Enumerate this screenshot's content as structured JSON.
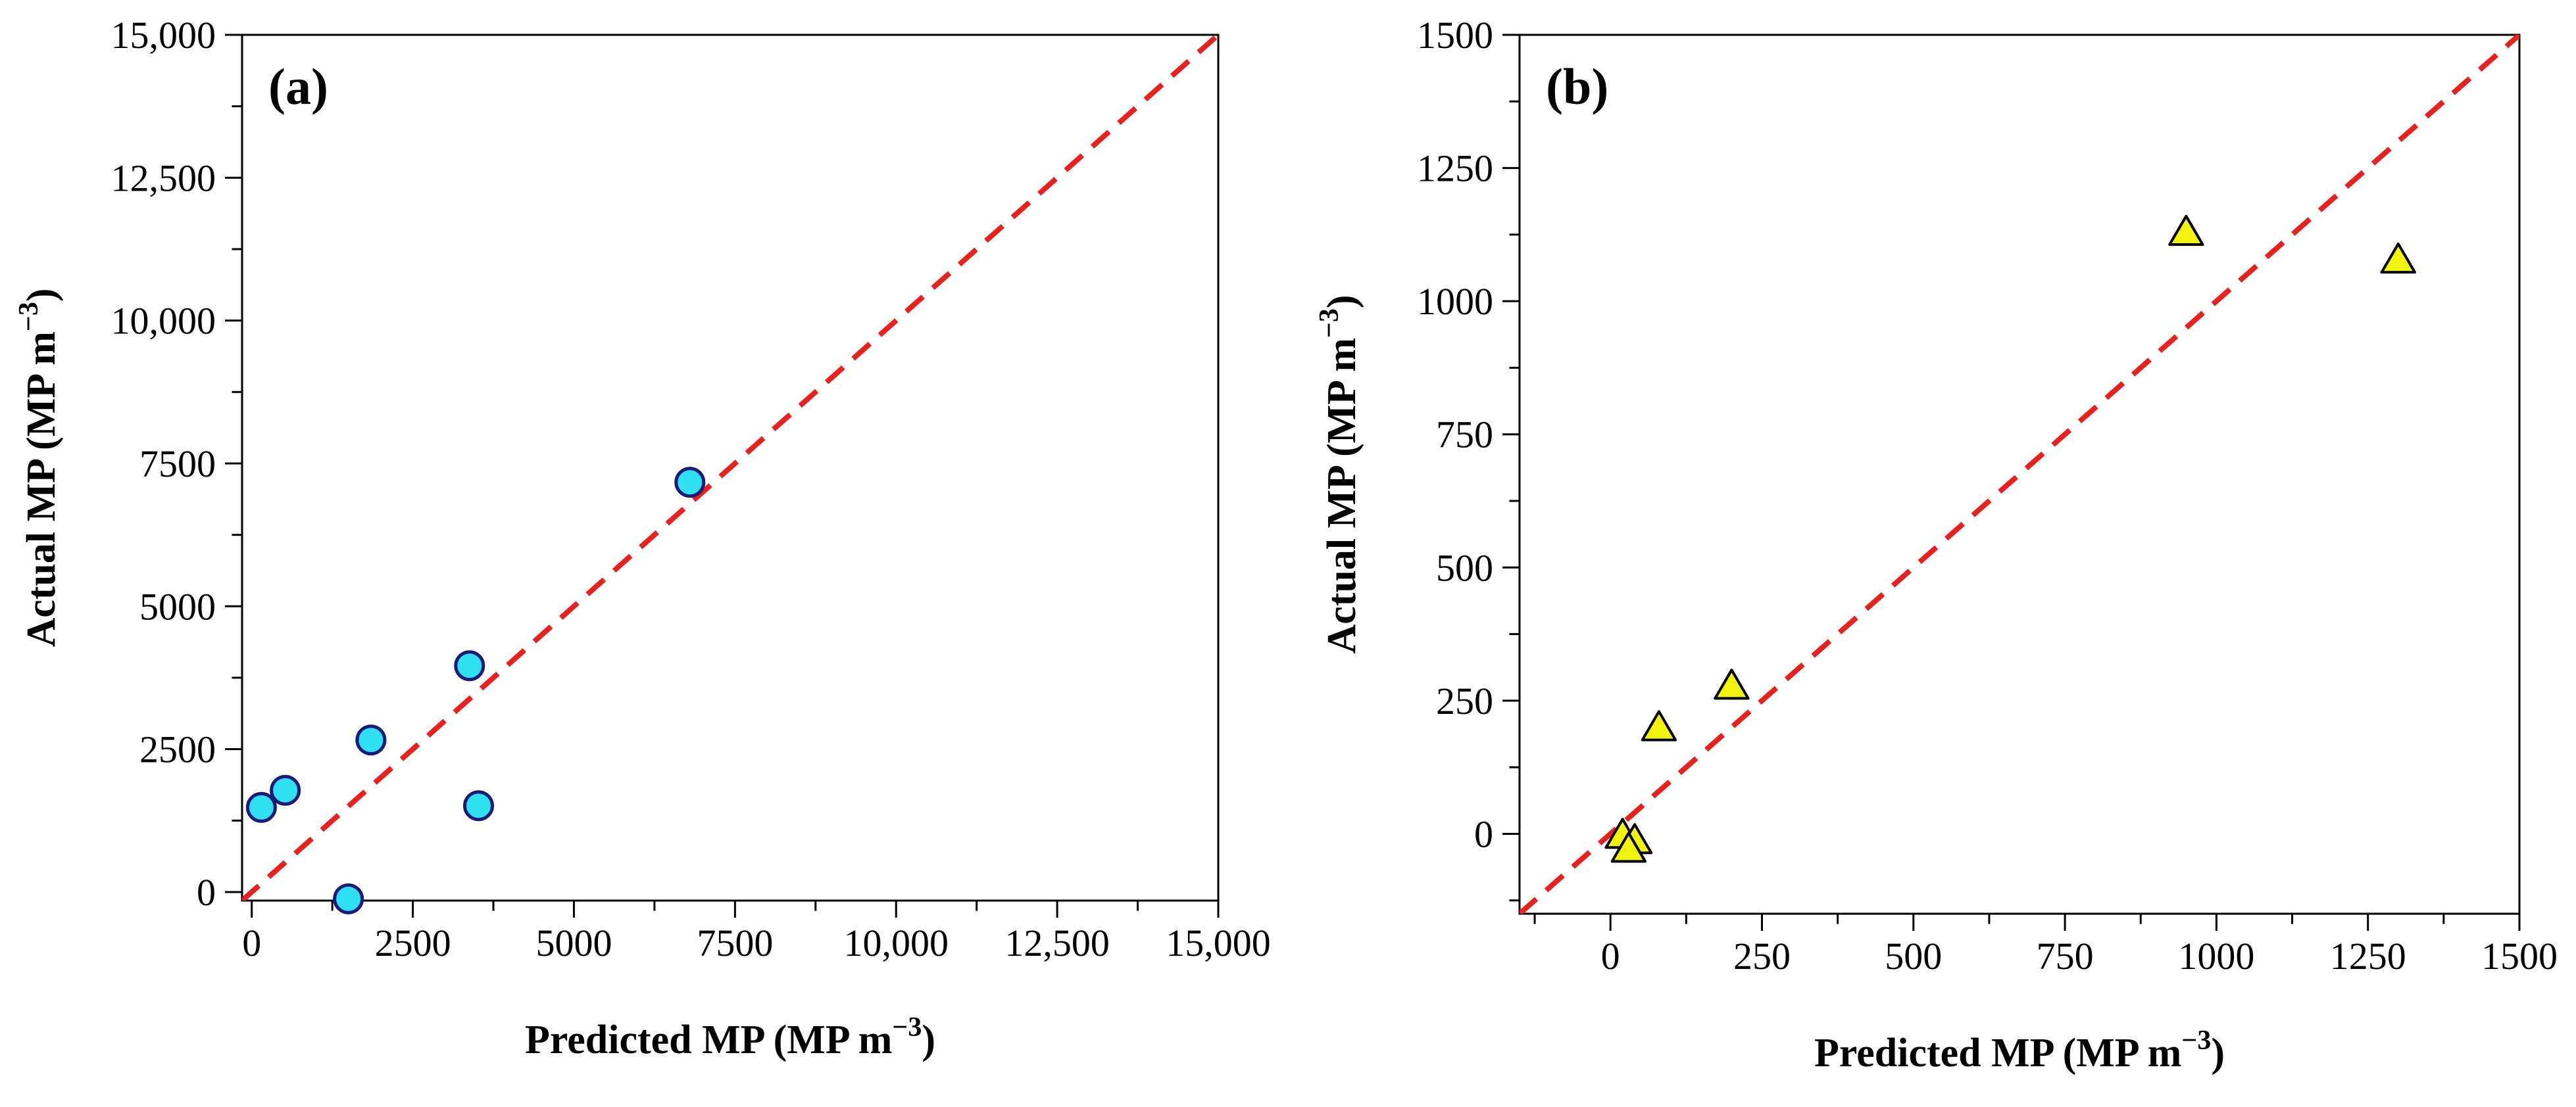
{
  "chart_data": [
    {
      "type": "scatter",
      "panel_label": "(a)",
      "xlabel": "Predicted MP (MP m",
      "ylabel": "Actual MP (MP m",
      "unit_exponent": "−3",
      "unit_close": ")",
      "xlim": [
        -150,
        15000
      ],
      "ylim": [
        -150,
        15000
      ],
      "xticks": [
        0,
        2500,
        5000,
        7500,
        10000,
        12500,
        15000
      ],
      "xtick_labels": [
        "0",
        "2500",
        "5000",
        "7500",
        "10,000",
        "12,500",
        "15,000"
      ],
      "yticks": [
        0,
        2500,
        5000,
        7500,
        10000,
        12500,
        15000
      ],
      "ytick_labels": [
        "0",
        "2500",
        "5000",
        "7500",
        "10,000",
        "12,500",
        "15,000"
      ],
      "reference_line": {
        "style": "dashed",
        "color": "#e8211f",
        "from": [
          -150,
          -150
        ],
        "to": [
          15000,
          15000
        ]
      },
      "marker": {
        "shape": "circle",
        "fill": "#2ee0f0",
        "stroke": "#1a1a7a"
      },
      "grid": false,
      "points": [
        {
          "x": 150,
          "y": 1480
        },
        {
          "x": 520,
          "y": 1780
        },
        {
          "x": 1500,
          "y": -120
        },
        {
          "x": 1850,
          "y": 2660
        },
        {
          "x": 3380,
          "y": 3960
        },
        {
          "x": 3520,
          "y": 1510
        },
        {
          "x": 6800,
          "y": 7170
        }
      ]
    },
    {
      "type": "scatter",
      "panel_label": "(b)",
      "xlabel": "Predicted MP (MP m",
      "ylabel": "Actual MP (MP m",
      "unit_exponent": "−3",
      "unit_close": ")",
      "xlim": [
        -150,
        1500
      ],
      "ylim": [
        -150,
        1500
      ],
      "xticks": [
        0,
        250,
        500,
        750,
        1000,
        1250,
        1500
      ],
      "xtick_labels": [
        "0",
        "250",
        "500",
        "750",
        "1000",
        "1250",
        "1500"
      ],
      "yticks": [
        0,
        250,
        500,
        750,
        1000,
        1250,
        1500
      ],
      "ytick_labels": [
        "0",
        "250",
        "500",
        "750",
        "1000",
        "1250",
        "1500"
      ],
      "reference_line": {
        "style": "dashed",
        "color": "#e8211f",
        "from": [
          -150,
          -150
        ],
        "to": [
          1500,
          1500
        ]
      },
      "marker": {
        "shape": "triangle",
        "fill": "#f2f20f",
        "stroke": "#000000"
      },
      "grid": false,
      "points": [
        {
          "x": 20,
          "y": -2
        },
        {
          "x": 40,
          "y": -12
        },
        {
          "x": 30,
          "y": -28
        },
        {
          "x": 80,
          "y": 200
        },
        {
          "x": 200,
          "y": 278
        },
        {
          "x": 950,
          "y": 1130
        },
        {
          "x": 1300,
          "y": 1078
        }
      ]
    }
  ]
}
